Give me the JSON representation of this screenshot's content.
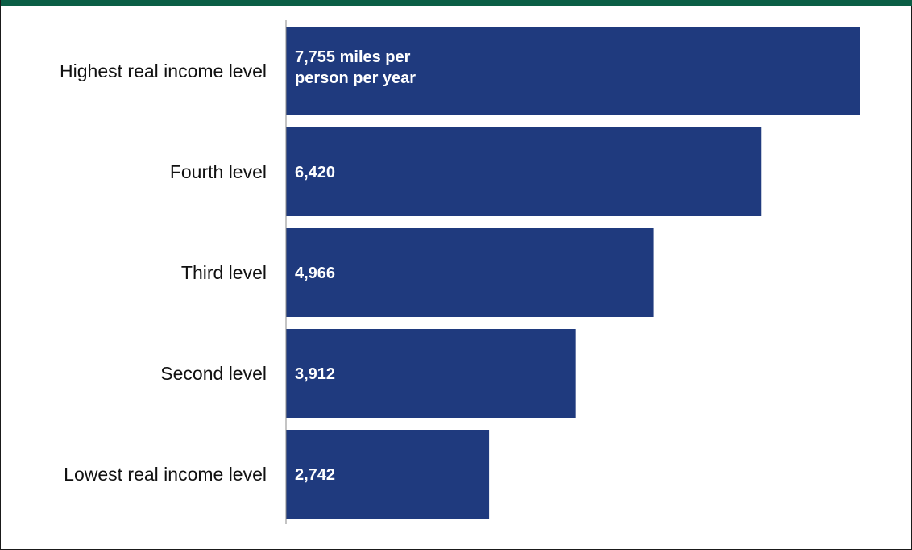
{
  "colors": {
    "bar": "#1f3a7e",
    "axis": "#888888",
    "top_band": "#0b5e45"
  },
  "chart_data": {
    "type": "bar",
    "orientation": "horizontal",
    "categories": [
      "Highest real income level",
      "Fourth level",
      "Third level",
      "Second level",
      "Lowest real income level"
    ],
    "values": [
      7755,
      6420,
      4966,
      3912,
      2742
    ],
    "data_labels": [
      [
        "7,755 miles per",
        "person per year"
      ],
      [
        "6,420"
      ],
      [
        "4,966"
      ],
      [
        "3,912"
      ],
      [
        "2,742"
      ]
    ],
    "unit": "miles per person per year",
    "xlim": [
      0,
      8500
    ],
    "grid": false,
    "legend": "none"
  }
}
